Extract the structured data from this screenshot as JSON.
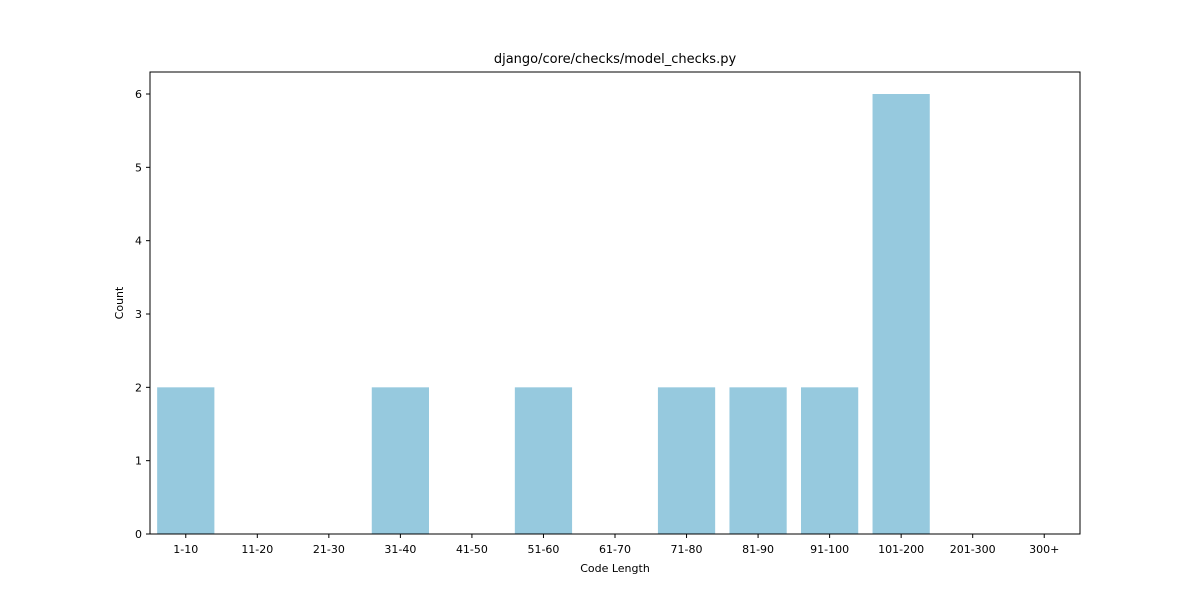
{
  "chart_data": {
    "type": "bar",
    "title": "django/core/checks/model_checks.py",
    "xlabel": "Code Length",
    "ylabel": "Count",
    "categories": [
      "1-10",
      "11-20",
      "21-30",
      "31-40",
      "41-50",
      "51-60",
      "61-70",
      "71-80",
      "81-90",
      "91-100",
      "101-200",
      "201-300",
      "300+"
    ],
    "values": [
      2,
      0,
      0,
      2,
      0,
      2,
      0,
      2,
      2,
      2,
      6,
      0,
      0
    ],
    "ylim": [
      0,
      6.3
    ],
    "yticks": [
      0,
      1,
      2,
      3,
      4,
      5,
      6
    ],
    "grid": false,
    "bar_color": "#96c9de"
  }
}
